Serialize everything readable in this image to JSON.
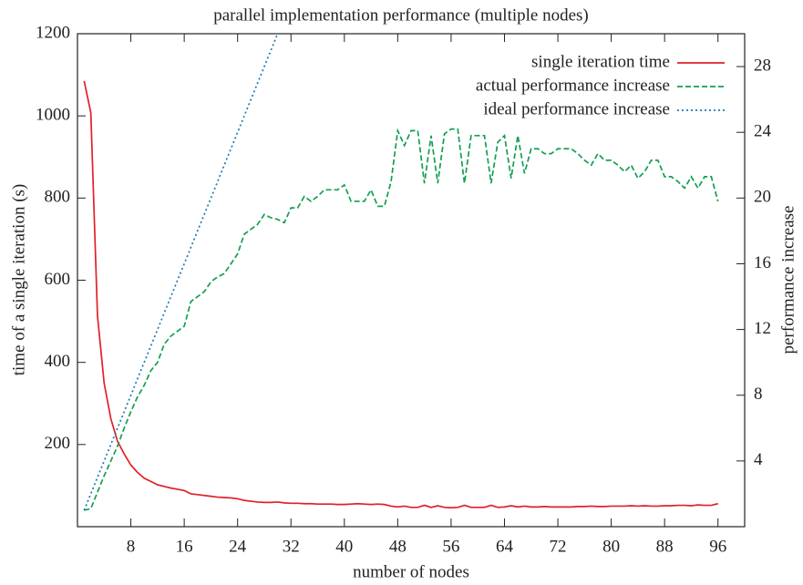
{
  "chart_data": {
    "type": "line",
    "title": "parallel implementation performance (multiple nodes)",
    "xlabel": "number of nodes",
    "ylabel": "time of a single iteration (s)",
    "y2label": "performance increase",
    "xlim": [
      0,
      100
    ],
    "xticks": [
      8,
      16,
      24,
      32,
      40,
      48,
      56,
      64,
      72,
      80,
      88,
      96
    ],
    "ylim": [
      0,
      1200
    ],
    "yticks": [
      200,
      400,
      600,
      800,
      1000,
      1200
    ],
    "y2lim": [
      0,
      30
    ],
    "y2ticks": [
      4,
      8,
      12,
      16,
      20,
      24,
      28
    ],
    "legend": "top-right",
    "x": [
      1,
      2,
      3,
      4,
      5,
      6,
      7,
      8,
      9,
      10,
      11,
      12,
      13,
      14,
      15,
      16,
      17,
      18,
      19,
      20,
      21,
      22,
      23,
      24,
      25,
      26,
      27,
      28,
      29,
      30,
      31,
      32,
      33,
      34,
      35,
      36,
      37,
      38,
      39,
      40,
      41,
      42,
      43,
      44,
      45,
      46,
      47,
      48,
      49,
      50,
      51,
      52,
      53,
      54,
      55,
      56,
      57,
      58,
      59,
      60,
      61,
      62,
      63,
      64,
      65,
      66,
      67,
      68,
      69,
      70,
      71,
      72,
      73,
      74,
      75,
      76,
      77,
      78,
      79,
      80,
      81,
      82,
      83,
      84,
      85,
      86,
      87,
      88,
      89,
      90,
      91,
      92,
      93,
      94,
      95,
      96
    ],
    "series": [
      {
        "name": "single iteration time",
        "color": "#e0202a",
        "dash": "solid",
        "values": [
          1085,
          1008,
          513,
          349,
          263,
          208,
          177,
          150,
          132,
          118,
          110,
          102,
          98,
          94,
          91,
          88,
          80,
          78,
          76,
          74,
          72,
          71,
          70,
          68,
          64,
          62,
          60,
          59,
          59,
          60,
          58,
          57,
          57,
          56,
          56,
          55,
          55,
          55,
          54,
          54,
          55,
          56,
          55,
          54,
          55,
          54,
          50,
          48,
          50,
          47,
          47,
          52,
          47,
          51,
          47,
          46,
          47,
          52,
          47,
          47,
          47,
          52,
          47,
          48,
          51,
          48,
          50,
          48,
          48,
          49,
          48,
          48,
          48,
          48,
          49,
          49,
          50,
          49,
          49,
          50,
          50,
          50,
          51,
          50,
          51,
          50,
          50,
          51,
          51,
          52,
          52,
          51,
          53,
          52,
          52,
          56
        ]
      },
      {
        "name": "actual performance increase",
        "color": "#12a050",
        "dash": "dashed",
        "axis": "y2",
        "values": [
          1.0,
          1.1,
          2.1,
          3.1,
          4.0,
          4.9,
          6.0,
          7.0,
          7.9,
          8.6,
          9.5,
          10.0,
          11.1,
          11.6,
          11.9,
          12.2,
          13.7,
          14.0,
          14.3,
          14.9,
          15.2,
          15.4,
          16.0,
          16.6,
          17.8,
          18.1,
          18.4,
          19.0,
          18.8,
          18.7,
          18.5,
          19.4,
          19.4,
          20.1,
          19.8,
          20.1,
          20.5,
          20.5,
          20.5,
          20.8,
          19.8,
          19.8,
          19.8,
          20.5,
          19.5,
          19.5,
          21.0,
          24.1,
          23.2,
          24.1,
          24.1,
          20.9,
          23.8,
          20.9,
          23.9,
          24.2,
          24.2,
          20.9,
          23.8,
          23.8,
          23.8,
          20.9,
          23.4,
          23.8,
          21.2,
          23.8,
          21.5,
          23.0,
          23.0,
          22.7,
          22.7,
          23.0,
          23.0,
          23.0,
          22.7,
          22.3,
          22.0,
          22.7,
          22.3,
          22.3,
          22.0,
          21.6,
          22.0,
          21.2,
          21.6,
          22.3,
          22.3,
          21.3,
          21.3,
          21.0,
          20.6,
          21.3,
          20.6,
          21.3,
          21.3,
          19.8
        ]
      },
      {
        "name": "ideal performance increase",
        "color": "#1f78b4",
        "dash": "dotted",
        "axis": "y2",
        "x": [
          1,
          30
        ],
        "values": [
          1,
          30
        ]
      }
    ]
  }
}
